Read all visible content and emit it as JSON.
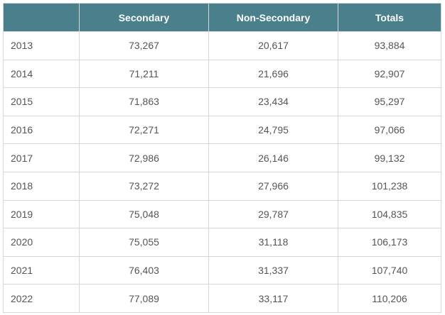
{
  "colors": {
    "header_bg": "#4a7f8c",
    "header_text": "#ffffff",
    "border": "#d6d6d6",
    "cell_text": "#555555"
  },
  "table": {
    "headers": [
      "",
      "Secondary",
      "Non-Secondary",
      "Totals"
    ],
    "rows": [
      {
        "year": "2013",
        "secondary": "73,267",
        "non_secondary": "20,617",
        "totals": "93,884"
      },
      {
        "year": "2014",
        "secondary": "71,211",
        "non_secondary": "21,696",
        "totals": "92,907"
      },
      {
        "year": "2015",
        "secondary": "71,863",
        "non_secondary": "23,434",
        "totals": "95,297"
      },
      {
        "year": "2016",
        "secondary": "72,271",
        "non_secondary": "24,795",
        "totals": "97,066"
      },
      {
        "year": "2017",
        "secondary": "72,986",
        "non_secondary": "26,146",
        "totals": "99,132"
      },
      {
        "year": "2018",
        "secondary": "73,272",
        "non_secondary": "27,966",
        "totals": "101,238"
      },
      {
        "year": "2019",
        "secondary": "75,048",
        "non_secondary": "29,787",
        "totals": "104,835"
      },
      {
        "year": "2020",
        "secondary": "75,055",
        "non_secondary": "31,118",
        "totals": "106,173"
      },
      {
        "year": "2021",
        "secondary": "76,403",
        "non_secondary": "31,337",
        "totals": "107,740"
      },
      {
        "year": "2022",
        "secondary": "77,089",
        "non_secondary": "33,117",
        "totals": "110,206"
      }
    ]
  }
}
